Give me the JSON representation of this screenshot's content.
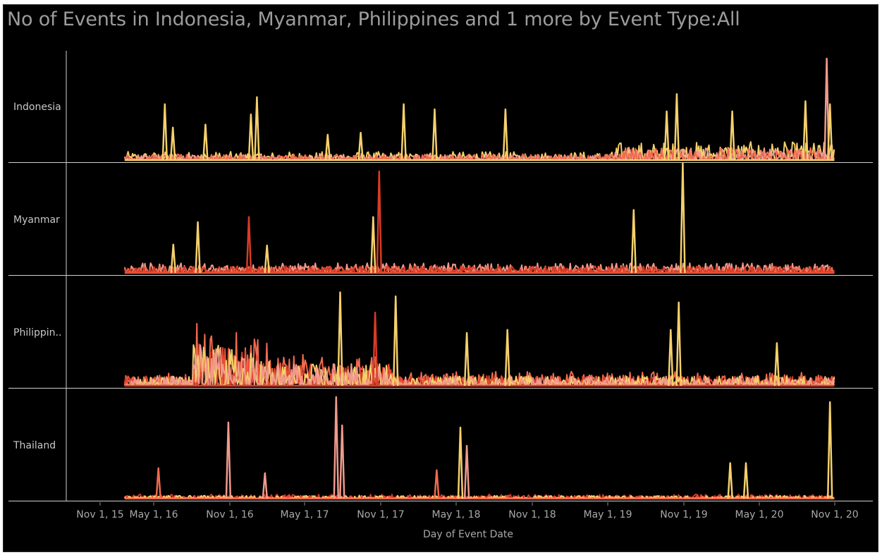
{
  "chart_data": {
    "type": "line",
    "title": "No of Events in Indonesia, Myanmar, Philippines and 1 more by Event Type:All",
    "xlabel": "Day of Event Date",
    "ylabel": "",
    "x_ticks": [
      "Nov 1, 15",
      "May 1, 16",
      "Nov 1, 16",
      "May 1, 17",
      "Nov 1, 17",
      "May 1, 18",
      "Nov 1, 18",
      "May 1, 19",
      "Nov 1, 19",
      "May 1, 20",
      "Nov 1, 20"
    ],
    "xlim": [
      "2015-09-15",
      "2020-11-01"
    ],
    "data_span": [
      "2016-01-01",
      "2020-10-31"
    ],
    "grid": false,
    "legend": "none",
    "series_colors": [
      "#f5d06b",
      "#f09a8c",
      "#ef6a4e",
      "#d63b25",
      "#e84c36"
    ],
    "panels": [
      {
        "label": "Indonesia",
        "baseline": "#f5d06b",
        "spikes": [
          {
            "x": "2016-04-10",
            "v": 0.55,
            "c": "#f5d06b"
          },
          {
            "x": "2016-04-30",
            "v": 0.32,
            "c": "#f5d06b"
          },
          {
            "x": "2016-07-20",
            "v": 0.35,
            "c": "#f5d06b"
          },
          {
            "x": "2016-11-25",
            "v": 0.62,
            "c": "#f5d06b"
          },
          {
            "x": "2016-11-10",
            "v": 0.45,
            "c": "#f5d06b"
          },
          {
            "x": "2017-05-20",
            "v": 0.25,
            "c": "#f5d06b"
          },
          {
            "x": "2017-08-10",
            "v": 0.27,
            "c": "#f5d06b"
          },
          {
            "x": "2017-11-25",
            "v": 0.55,
            "c": "#f5d06b"
          },
          {
            "x": "2018-02-10",
            "v": 0.5,
            "c": "#f5d06b"
          },
          {
            "x": "2018-08-05",
            "v": 0.5,
            "c": "#f5d06b"
          },
          {
            "x": "2019-10-05",
            "v": 0.65,
            "c": "#f5d06b"
          },
          {
            "x": "2019-09-10",
            "v": 0.48,
            "c": "#f5d06b"
          },
          {
            "x": "2020-02-20",
            "v": 0.48,
            "c": "#f5d06b"
          },
          {
            "x": "2020-08-20",
            "v": 0.58,
            "c": "#f5d06b"
          },
          {
            "x": "2020-10-12",
            "v": 1.0,
            "c": "#f09a8c"
          },
          {
            "x": "2020-10-20",
            "v": 0.55,
            "c": "#f5d06b"
          }
        ]
      },
      {
        "label": "Myanmar",
        "baseline": "#e84c36",
        "spikes": [
          {
            "x": "2016-05-01",
            "v": 0.28,
            "c": "#f5d06b"
          },
          {
            "x": "2016-07-01",
            "v": 0.5,
            "c": "#f5d06b"
          },
          {
            "x": "2016-11-05",
            "v": 0.55,
            "c": "#d63b25"
          },
          {
            "x": "2016-12-20",
            "v": 0.27,
            "c": "#f5d06b"
          },
          {
            "x": "2017-09-10",
            "v": 0.55,
            "c": "#f5d06b"
          },
          {
            "x": "2017-09-25",
            "v": 1.0,
            "c": "#d63b25"
          },
          {
            "x": "2019-06-20",
            "v": 0.62,
            "c": "#f5d06b"
          },
          {
            "x": "2019-10-20",
            "v": 1.08,
            "c": "#f5d06b"
          }
        ]
      },
      {
        "label": "Philippin..",
        "baseline": "#e03a24",
        "spikes": [
          {
            "x": "2017-06-20",
            "v": 0.92,
            "c": "#f5d06b"
          },
          {
            "x": "2017-09-15",
            "v": 0.72,
            "c": "#d63b25"
          },
          {
            "x": "2017-11-05",
            "v": 0.88,
            "c": "#f5d06b"
          },
          {
            "x": "2018-05-01",
            "v": 0.52,
            "c": "#f5d06b"
          },
          {
            "x": "2018-08-10",
            "v": 0.55,
            "c": "#f5d06b"
          },
          {
            "x": "2019-10-10",
            "v": 0.82,
            "c": "#f5d06b"
          },
          {
            "x": "2019-09-20",
            "v": 0.55,
            "c": "#f5d06b"
          },
          {
            "x": "2020-06-10",
            "v": 0.42,
            "c": "#f5d06b"
          }
        ]
      },
      {
        "label": "Thailand",
        "baseline": "#ef6a4e",
        "spikes": [
          {
            "x": "2016-03-25",
            "v": 0.3,
            "c": "#ef6a4e"
          },
          {
            "x": "2016-09-15",
            "v": 0.75,
            "c": "#f09a8c"
          },
          {
            "x": "2016-12-15",
            "v": 0.25,
            "c": "#f09a8c"
          },
          {
            "x": "2017-06-10",
            "v": 1.0,
            "c": "#f09a8c"
          },
          {
            "x": "2017-06-25",
            "v": 0.72,
            "c": "#f09a8c"
          },
          {
            "x": "2018-04-15",
            "v": 0.7,
            "c": "#f5d06b"
          },
          {
            "x": "2018-05-01",
            "v": 0.52,
            "c": "#f09a8c"
          },
          {
            "x": "2018-02-15",
            "v": 0.28,
            "c": "#ef6a4e"
          },
          {
            "x": "2020-02-15",
            "v": 0.35,
            "c": "#f5d06b"
          },
          {
            "x": "2020-03-25",
            "v": 0.35,
            "c": "#f5d06b"
          },
          {
            "x": "2020-10-20",
            "v": 0.95,
            "c": "#f5d06b"
          }
        ]
      }
    ]
  }
}
